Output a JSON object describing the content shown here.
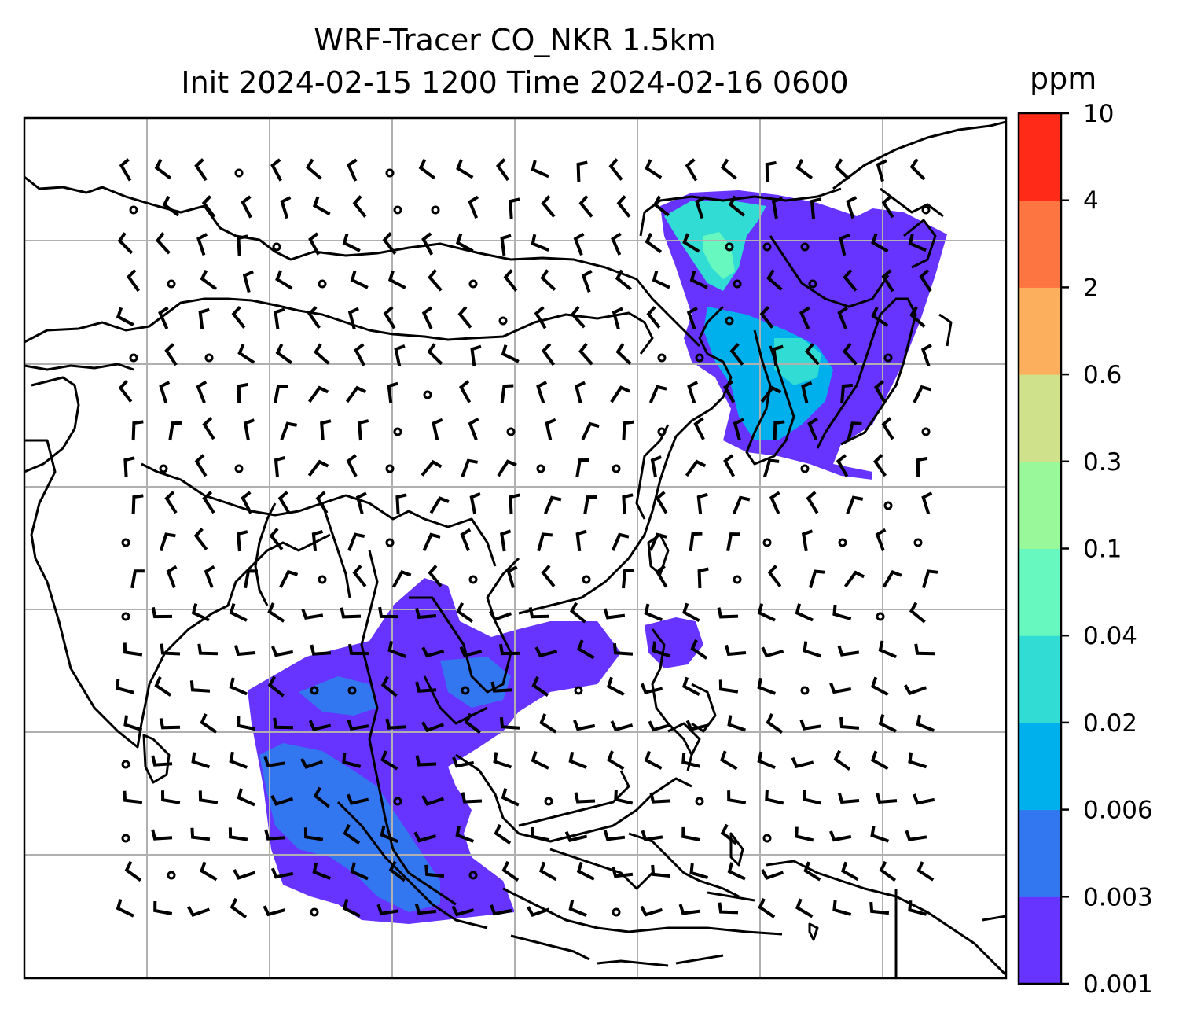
{
  "title": {
    "line1": "WRF-Tracer CO_NKR 1.5km",
    "line2": "Init 2024-02-15 1200 Time 2024-02-16 0600"
  },
  "colorbar": {
    "units": "ppm",
    "levels": [
      "0.001",
      "0.003",
      "0.006",
      "0.02",
      "0.04",
      "0.1",
      "0.3",
      "0.6",
      "2",
      "4",
      "10"
    ],
    "colors": [
      "#6633ff",
      "#3377f0",
      "#00b0ec",
      "#30dcd4",
      "#66f8bf",
      "#98f89a",
      "#d0e18b",
      "#fcb05e",
      "#fd7540",
      "#ff2b18"
    ]
  },
  "map": {
    "gridlines": true,
    "coastline_color": "#000000",
    "grid_color": "#b0b0b0",
    "wind_barbs_color": "#000000"
  }
}
